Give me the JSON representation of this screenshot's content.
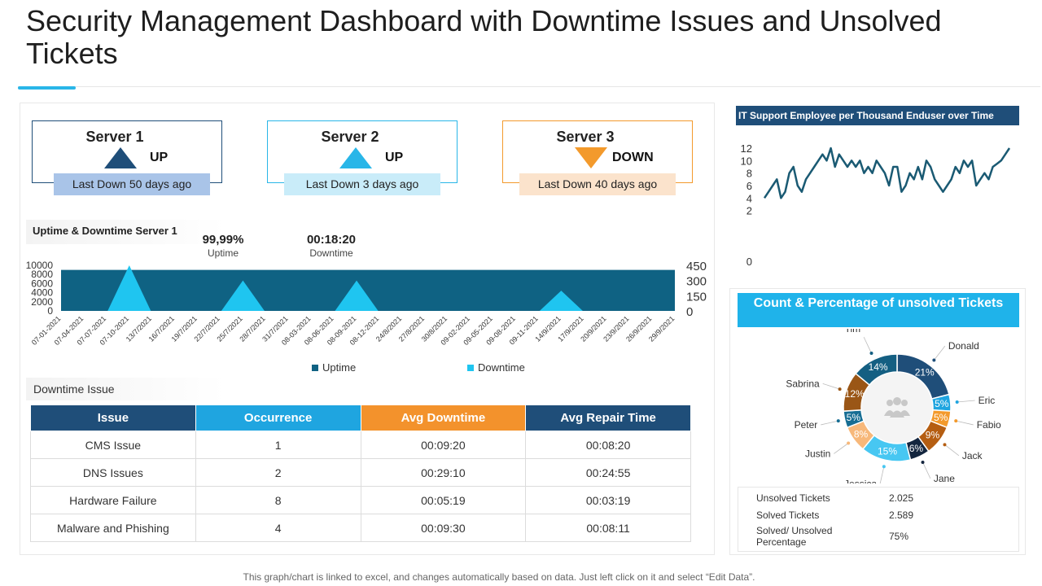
{
  "page": {
    "title": "Security Management Dashboard with Downtime Issues and Unsolved Tickets",
    "footnote": "This graph/chart is linked to excel, and changes automatically based on data. Just left click on it and select “Edit Data”."
  },
  "servers": [
    {
      "name": "Server 1",
      "status": "UP",
      "last_down": "Last Down 50 days ago",
      "color": "#1f4e79",
      "badge_bg": "#a9c4e8"
    },
    {
      "name": "Server 2",
      "status": "UP",
      "last_down": "Last Down 3 days ago",
      "color": "#29b6e8",
      "badge_bg": "#c9ecf9"
    },
    {
      "name": "Server 3",
      "status": "DOWN",
      "last_down": "Last Down 40 days ago",
      "color": "#f39a2c",
      "badge_bg": "#fbe3cc"
    }
  ],
  "uptime": {
    "section_label": "Uptime & Downtime Server 1",
    "uptime_value": "99,99%",
    "uptime_label": "Uptime",
    "downtime_value": "00:18:20",
    "downtime_label": "Downtime"
  },
  "downtime_issue": {
    "section_label": "Downtime Issue",
    "headers": [
      "Issue",
      "Occurrence",
      "Avg Downtime",
      "Avg Repair Time"
    ],
    "rows": [
      [
        "CMS Issue",
        "1",
        "00:09:20",
        "00:08:20"
      ],
      [
        "DNS Issues",
        "2",
        "00:29:10",
        "00:24:55"
      ],
      [
        "Hardware Failure",
        "8",
        "00:05:19",
        "00:03:19"
      ],
      [
        "Malware and Phishing",
        "4",
        "00:09:30",
        "00:08:11"
      ]
    ]
  },
  "tickets_header": "Count & Percentage of unsolved Tickets",
  "summary": [
    {
      "label": "Unsolved Tickets",
      "value": "2.025"
    },
    {
      "label": "Solved Tickets",
      "value": "2.589"
    },
    {
      "label": "Solved/ Unsolved Percentage",
      "value": "75%"
    }
  ],
  "chart_data": [
    {
      "type": "area",
      "title": "Uptime & Downtime Server 1",
      "categories": [
        "07-01-2021",
        "07-04-2021",
        "07-07-2021",
        "07-10-2021",
        "13/7/2021",
        "16/7/2021",
        "19/7/2021",
        "22/7/2021",
        "25/7/2021",
        "28/7/2021",
        "31/7/2021",
        "08-03-2021",
        "08-06-2021",
        "08-09-2021",
        "08-12-2021",
        "24/8/2021",
        "27/8/2021",
        "30/8/2021",
        "09-02-2021",
        "09-05-2021",
        "09-08-2021",
        "09-11-2021",
        "14/9/2021",
        "17/9/2021",
        "20/9/2021",
        "23/9/2021",
        "26/9/2021",
        "29/9/2021"
      ],
      "series": [
        {
          "name": "Uptime",
          "axis": "left",
          "color": "#0f6283",
          "values": [
            9000,
            9000,
            9000,
            9000,
            9000,
            9000,
            9000,
            9000,
            9000,
            9000,
            9000,
            9000,
            9000,
            9000,
            9000,
            9000,
            9000,
            9000,
            9000,
            9000,
            9000,
            9000,
            9000,
            9000,
            9000,
            9000,
            9000,
            9000
          ]
        },
        {
          "name": "Downtime",
          "axis": "right",
          "color": "#1fc5f0",
          "values": [
            0,
            0,
            0,
            450,
            0,
            0,
            0,
            0,
            300,
            0,
            0,
            0,
            0,
            300,
            0,
            0,
            0,
            0,
            0,
            0,
            0,
            0,
            200,
            0,
            0,
            0,
            0,
            0
          ]
        }
      ],
      "ylim_left": [
        0,
        10000
      ],
      "yticks_left": [
        0,
        2000,
        4000,
        6000,
        8000,
        10000
      ],
      "ylim_right": [
        0,
        450
      ],
      "yticks_right": [
        0,
        150,
        300,
        450
      ],
      "legend": [
        "Uptime",
        "Downtime"
      ],
      "legend_position": "bottom"
    },
    {
      "type": "line",
      "title": "IT Support Employee per Thousand Enduser over Time",
      "values": [
        4,
        5,
        6,
        7,
        4,
        5,
        8,
        9,
        6,
        5,
        7,
        8,
        9,
        10,
        11,
        10,
        12,
        9,
        11,
        10,
        9,
        10,
        9,
        10,
        8,
        9,
        8,
        10,
        9,
        8,
        6,
        9,
        9,
        5,
        6,
        8,
        7,
        9,
        7,
        10,
        9,
        7,
        6,
        5,
        6,
        7,
        9,
        8,
        10,
        9,
        10,
        6,
        7,
        8,
        7,
        9,
        9.5,
        10,
        11,
        12
      ],
      "ylim": [
        0,
        12
      ],
      "yticks": [
        0,
        2,
        4,
        6,
        8,
        10,
        12
      ],
      "color": "#1a5a73"
    },
    {
      "type": "pie",
      "title": "Count & Percentage of unsolved Tickets",
      "slices": [
        {
          "label": "Donald",
          "value": 21,
          "pct": "21%",
          "color": "#1f4e79"
        },
        {
          "label": "Eric",
          "value": 5,
          "pct": "5%",
          "color": "#1fa5e0"
        },
        {
          "label": "Fabio",
          "value": 5,
          "pct": "5%",
          "color": "#f39a2c"
        },
        {
          "label": "Jack",
          "value": 9,
          "pct": "9%",
          "color": "#b55e12"
        },
        {
          "label": "Jane",
          "value": 6,
          "pct": "6%",
          "color": "#14263f"
        },
        {
          "label": "Jessica",
          "value": 15,
          "pct": "15%",
          "color": "#47c7f2"
        },
        {
          "label": "Justin",
          "value": 8,
          "pct": "8%",
          "color": "#f7b87a"
        },
        {
          "label": "Peter",
          "value": 5,
          "pct": "5%",
          "color": "#166d93"
        },
        {
          "label": "Sabrina",
          "value": 12,
          "pct": "12%",
          "color": "#9a5616"
        },
        {
          "label": "Tim",
          "value": 14,
          "pct": "14%",
          "color": "#145f82"
        }
      ]
    }
  ]
}
